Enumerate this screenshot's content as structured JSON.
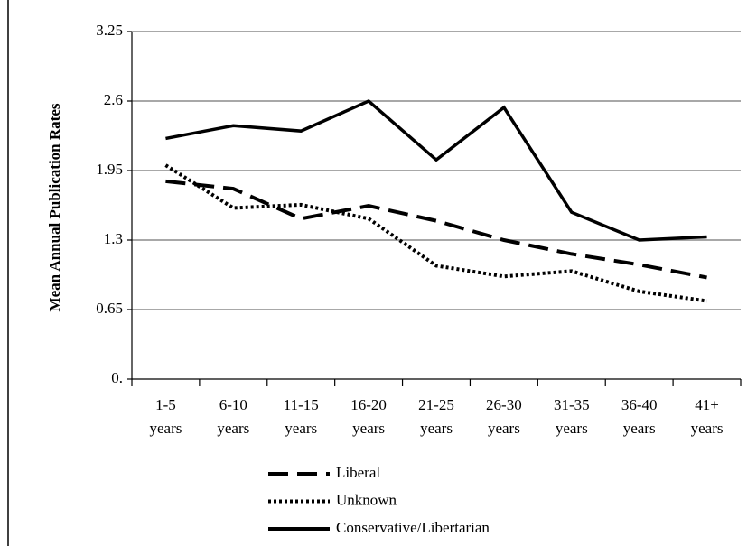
{
  "chart_data": {
    "type": "line",
    "y_label": "Mean Annual Publication Rates",
    "categories": [
      "1-5 years",
      "6-10 years",
      "11-15 years",
      "16-20 years",
      "21-25 years",
      "26-30 years",
      "31-35 years",
      "36-40 years",
      "41+ years"
    ],
    "series": [
      {
        "name": "Liberal",
        "color": "#000000",
        "style": "dashed",
        "values": [
          1.85,
          1.78,
          1.5,
          1.62,
          1.48,
          1.3,
          1.17,
          1.07,
          0.95
        ]
      },
      {
        "name": "Unknown",
        "color": "#000000",
        "style": "dotted",
        "values": [
          2.0,
          1.6,
          1.63,
          1.5,
          1.06,
          0.96,
          1.01,
          0.82,
          0.73
        ]
      },
      {
        "name": "Conservative/Libertarian",
        "color": "#000000",
        "style": "solid",
        "values": [
          2.25,
          2.37,
          2.32,
          2.6,
          2.05,
          2.54,
          1.56,
          1.3,
          1.33
        ]
      }
    ],
    "ylim": [
      0,
      3.25
    ],
    "yticks": [
      {
        "value": 0,
        "label": "0."
      },
      0.65,
      1.3,
      1.95,
      2.6,
      3.25
    ],
    "grid": true,
    "legend": "bottom"
  }
}
